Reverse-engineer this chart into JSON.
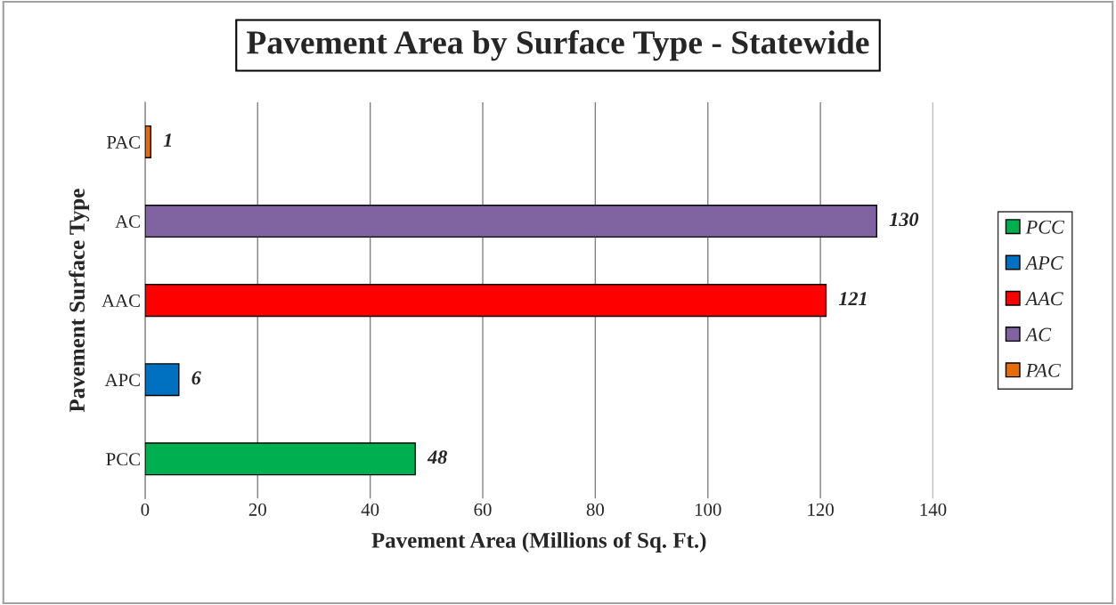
{
  "chart_data": {
    "type": "bar",
    "orientation": "horizontal",
    "title": "Pavement Area by Surface Type - Statewide",
    "xlabel": "Pavement Area (Millions of Sq. Ft.)",
    "ylabel": "Pavement Surface Type",
    "categories": [
      "PAC",
      "AC",
      "AAC",
      "APC",
      "PCC"
    ],
    "series": [
      {
        "name": "PCC",
        "color": "#00b050",
        "values": [
          null,
          null,
          null,
          null,
          48
        ]
      },
      {
        "name": "APC",
        "color": "#0070c0",
        "values": [
          null,
          null,
          null,
          6,
          null
        ]
      },
      {
        "name": "AAC",
        "color": "#ff0000",
        "values": [
          null,
          null,
          121,
          null,
          null
        ]
      },
      {
        "name": "AC",
        "color": "#8064a2",
        "values": [
          null,
          130,
          null,
          null,
          null
        ]
      },
      {
        "name": "PAC",
        "color": "#e46c0a",
        "values": [
          1,
          null,
          null,
          null,
          null
        ]
      }
    ],
    "xlim": [
      0,
      140
    ],
    "xticks": [
      0,
      20,
      40,
      60,
      80,
      100,
      120,
      140
    ],
    "grid": "x",
    "legend": "right",
    "data_labels": true
  }
}
